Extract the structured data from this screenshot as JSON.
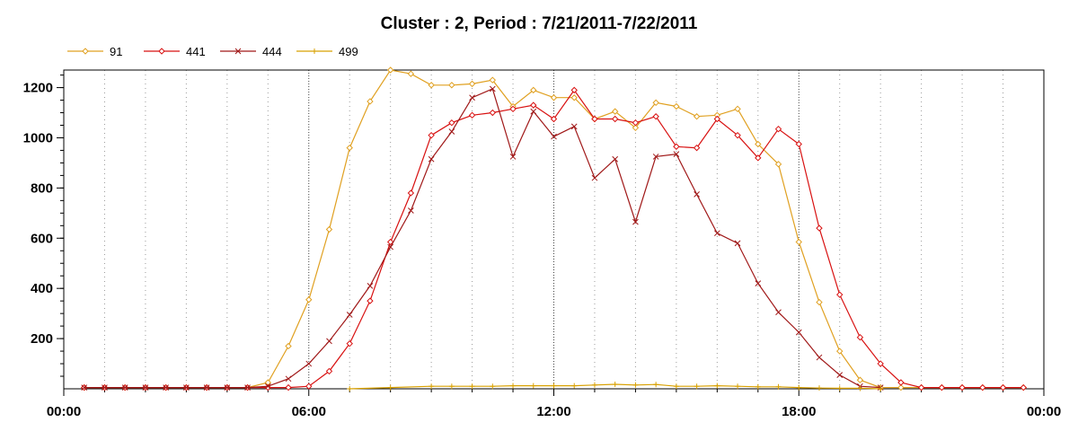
{
  "chart_data": {
    "type": "line",
    "title": "Cluster : 2, Period : 7/21/2011-7/22/2011",
    "xlabel": "",
    "ylabel": "",
    "xlim": [
      0,
      24
    ],
    "ylim": [
      0,
      1270
    ],
    "x_ticks": [
      0,
      6,
      12,
      18,
      24
    ],
    "x_tick_labels": [
      "00:00",
      "06:00",
      "12:00",
      "18:00",
      "00:00"
    ],
    "y_ticks": [
      200,
      400,
      600,
      800,
      1000,
      1200
    ],
    "y_tick_labels": [
      "200",
      "400",
      "600",
      "800",
      "1000",
      "1200"
    ],
    "grid": "vertical dotted, hourly",
    "legend_position": "top-left",
    "series": [
      {
        "name": "91",
        "color": "#E0A020",
        "marker": "diamond",
        "x": [
          0.5,
          1,
          1.5,
          2,
          2.5,
          3,
          3.5,
          4,
          4.5,
          5,
          5.5,
          6,
          6.5,
          7,
          7.5,
          8,
          8.5,
          9,
          9.5,
          10,
          10.5,
          11,
          11.5,
          12,
          12.5,
          13,
          13.5,
          14,
          14.5,
          15,
          15.5,
          16,
          16.5,
          17,
          17.5,
          18,
          18.5,
          19,
          19.5,
          20,
          20.5,
          21,
          21.5,
          22,
          22.5,
          23,
          23.5
        ],
        "values": [
          5,
          5,
          5,
          5,
          5,
          5,
          5,
          5,
          5,
          25,
          170,
          355,
          635,
          960,
          1145,
          1270,
          1255,
          1210,
          1210,
          1215,
          1230,
          1125,
          1190,
          1160,
          1160,
          1075,
          1105,
          1040,
          1140,
          1125,
          1085,
          1090,
          1115,
          975,
          895,
          585,
          345,
          150,
          35,
          5,
          5,
          5,
          5,
          5,
          5,
          5,
          5
        ]
      },
      {
        "name": "441",
        "color": "#D81010",
        "marker": "diamond",
        "x": [
          0.5,
          1,
          1.5,
          2,
          2.5,
          3,
          3.5,
          4,
          4.5,
          5,
          5.5,
          6,
          6.5,
          7,
          7.5,
          8,
          8.5,
          9,
          9.5,
          10,
          10.5,
          11,
          11.5,
          12,
          12.5,
          13,
          13.5,
          14,
          14.5,
          15,
          15.5,
          16,
          16.5,
          17,
          17.5,
          18,
          18.5,
          19,
          19.5,
          20,
          20.5,
          21,
          21.5,
          22,
          22.5,
          23,
          23.5
        ],
        "values": [
          5,
          5,
          5,
          5,
          5,
          5,
          5,
          5,
          5,
          5,
          5,
          10,
          70,
          180,
          350,
          585,
          780,
          1010,
          1060,
          1090,
          1100,
          1115,
          1130,
          1075,
          1190,
          1075,
          1075,
          1060,
          1085,
          965,
          960,
          1075,
          1010,
          920,
          1035,
          975,
          640,
          375,
          205,
          100,
          25,
          5,
          5,
          5,
          5,
          5,
          5
        ]
      },
      {
        "name": "444",
        "color": "#A01818",
        "marker": "x",
        "x": [
          0.5,
          1,
          1.5,
          2,
          2.5,
          3,
          3.5,
          4,
          4.5,
          5,
          5.5,
          6,
          6.5,
          7,
          7.5,
          8,
          8.5,
          9,
          9.5,
          10,
          10.5,
          11,
          11.5,
          12,
          12.5,
          13,
          13.5,
          14,
          14.5,
          15,
          15.5,
          16,
          16.5,
          17,
          17.5,
          18,
          18.5,
          19,
          19.5,
          20
        ],
        "values": [
          5,
          5,
          5,
          5,
          5,
          5,
          5,
          5,
          5,
          10,
          40,
          100,
          190,
          295,
          410,
          565,
          710,
          915,
          1025,
          1160,
          1195,
          925,
          1105,
          1005,
          1045,
          840,
          915,
          665,
          925,
          935,
          775,
          620,
          580,
          420,
          305,
          225,
          125,
          55,
          10,
          5
        ]
      },
      {
        "name": "499",
        "color": "#D8A000",
        "marker": "plus",
        "x": [
          7,
          8,
          9,
          9.5,
          10,
          10.5,
          11,
          11.5,
          12,
          12.5,
          13,
          13.5,
          14,
          14.5,
          15,
          15.5,
          16,
          16.5,
          17,
          17.5,
          18,
          18.5,
          19,
          19.5,
          20
        ],
        "values": [
          0,
          5,
          10,
          10,
          10,
          10,
          12,
          12,
          12,
          12,
          15,
          18,
          15,
          17,
          10,
          10,
          12,
          10,
          8,
          8,
          5,
          3,
          2,
          2,
          0
        ]
      }
    ]
  }
}
